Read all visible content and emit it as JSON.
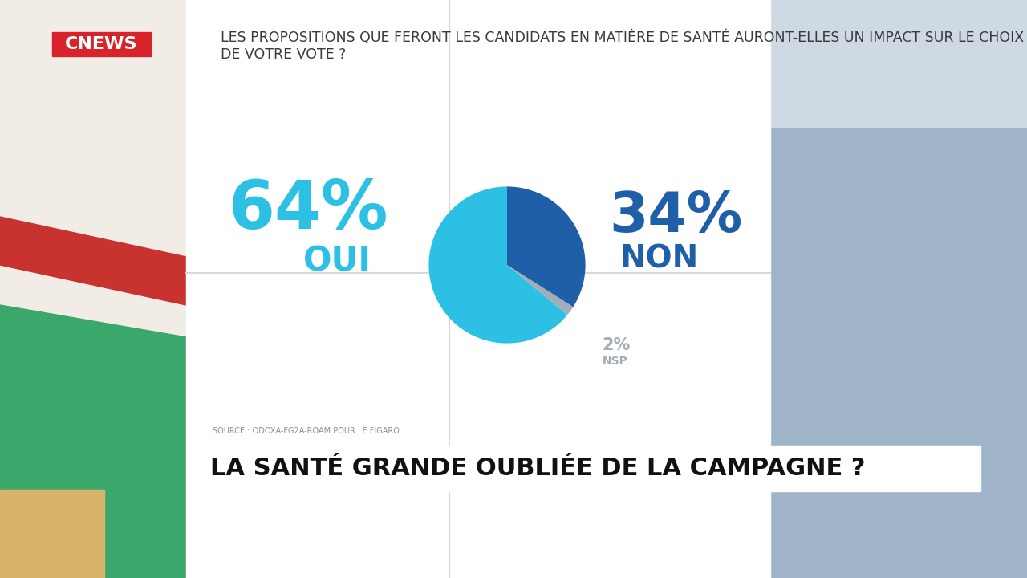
{
  "header": {
    "logo": "CNEWS"
  },
  "chart_data": {
    "type": "pie",
    "title": "LES PROPOSITIONS QUE FERONT LES CANDIDATS EN MATIÈRE DE SANTÉ AURONT-ELLES UN IMPACT SUR LE CHOIX DE VOTRE VOTE ?",
    "categories": [
      "OUI",
      "NSP",
      "NON"
    ],
    "values": [
      64,
      2,
      34
    ],
    "value_labels": [
      "64%",
      "2%",
      "34%"
    ],
    "colors": [
      "#2cc0e4",
      "#a3adb8",
      "#1f5fa8"
    ],
    "data_labels": true,
    "source": "SOURCE : ODOXA-FG2A-ROAM POUR LE FIGARO"
  },
  "banner": {
    "text": "LA SANTÉ GRANDE OUBLIÉE DE LA CAMPAGNE ?"
  }
}
